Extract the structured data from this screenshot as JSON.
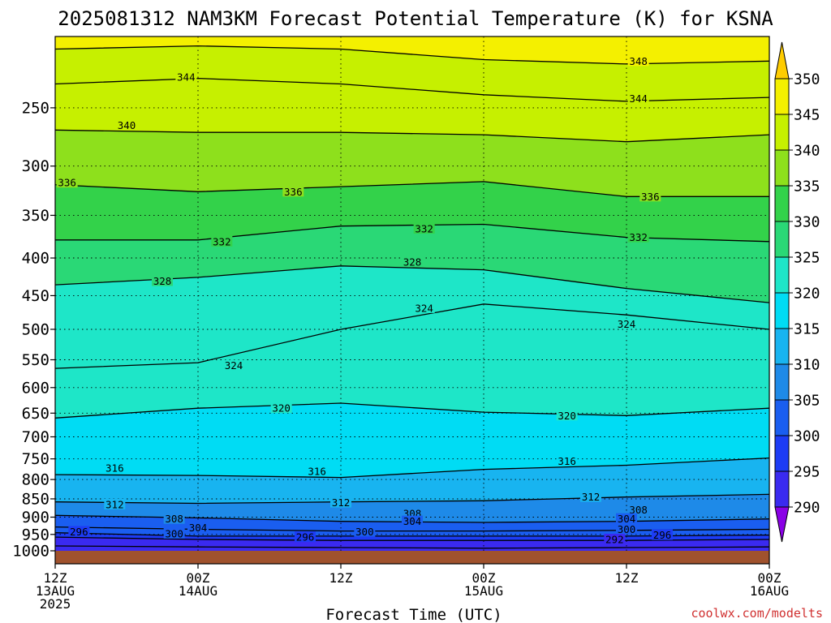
{
  "chart_data": {
    "type": "heatmap",
    "title": "2025081312 NAM3KM Forecast Potential Temperature (K) for KSNA",
    "xlabel": "Forecast Time (UTC)",
    "ylabel": "",
    "credit": "coolwx.com/modelts",
    "y_scale": "log-pressure",
    "ylim": [
      1000,
      200
    ],
    "xlim_hours": [
      0,
      60
    ],
    "grid": true,
    "pressure_ticks": [
      250,
      300,
      350,
      400,
      450,
      500,
      550,
      600,
      650,
      700,
      750,
      800,
      850,
      900,
      950,
      1000
    ],
    "x_ticks": [
      {
        "hour": 0,
        "line1": "12Z",
        "line2": "13AUG",
        "line3": "2025"
      },
      {
        "hour": 12,
        "line1": "00Z",
        "line2": "14AUG",
        "line3": ""
      },
      {
        "hour": 24,
        "line1": "12Z",
        "line2": "",
        "line3": ""
      },
      {
        "hour": 36,
        "line1": "00Z",
        "line2": "15AUG",
        "line3": ""
      },
      {
        "hour": 48,
        "line1": "12Z",
        "line2": "",
        "line3": ""
      },
      {
        "hour": 60,
        "line1": "00Z",
        "line2": "16AUG",
        "line3": ""
      }
    ],
    "colorbar": {
      "levels": [
        290,
        295,
        300,
        305,
        310,
        315,
        320,
        325,
        330,
        335,
        340,
        345,
        350
      ],
      "colors": [
        "#8a00e6",
        "#3a2af0",
        "#1d3cf5",
        "#1a5ef0",
        "#1e8ae8",
        "#18b4f0",
        "#00dcf4",
        "#1ee6c8",
        "#2ad876",
        "#33d24a",
        "#8ee01c",
        "#c6f000",
        "#f4f000",
        "#ffcc00"
      ],
      "labels": [
        "290",
        "295",
        "300",
        "305",
        "310",
        "315",
        "320",
        "325",
        "330",
        "335",
        "340",
        "345",
        "350"
      ]
    },
    "surface_color": "#a0522d",
    "isentropes": [
      {
        "value": 292,
        "points": [
          [
            0,
            985
          ],
          [
            12,
            988
          ],
          [
            24,
            990
          ],
          [
            36,
            992
          ],
          [
            48,
            990
          ],
          [
            60,
            988
          ]
        ]
      },
      {
        "value": 296,
        "points": [
          [
            0,
            958
          ],
          [
            12,
            965
          ],
          [
            24,
            968
          ],
          [
            36,
            968
          ],
          [
            48,
            968
          ],
          [
            60,
            965
          ]
        ]
      },
      {
        "value": 300,
        "points": [
          [
            0,
            945
          ],
          [
            12,
            955
          ],
          [
            24,
            955
          ],
          [
            36,
            955
          ],
          [
            48,
            955
          ],
          [
            60,
            952
          ]
        ]
      },
      {
        "value": 304,
        "points": [
          [
            0,
            928
          ],
          [
            12,
            935
          ],
          [
            24,
            940
          ],
          [
            36,
            940
          ],
          [
            48,
            938
          ],
          [
            60,
            935
          ]
        ]
      },
      {
        "value": 308,
        "points": [
          [
            0,
            895
          ],
          [
            12,
            902
          ],
          [
            24,
            912
          ],
          [
            36,
            915
          ],
          [
            48,
            912
          ],
          [
            60,
            905
          ]
        ]
      },
      {
        "value": 312,
        "points": [
          [
            0,
            858
          ],
          [
            12,
            862
          ],
          [
            24,
            858
          ],
          [
            36,
            855
          ],
          [
            48,
            845
          ],
          [
            60,
            838
          ]
        ]
      },
      {
        "value": 316,
        "points": [
          [
            0,
            788
          ],
          [
            12,
            790
          ],
          [
            24,
            795
          ],
          [
            36,
            775
          ],
          [
            48,
            765
          ],
          [
            60,
            748
          ]
        ]
      },
      {
        "value": 320,
        "points": [
          [
            0,
            660
          ],
          [
            12,
            640
          ],
          [
            24,
            630
          ],
          [
            36,
            648
          ],
          [
            48,
            655
          ],
          [
            60,
            640
          ]
        ]
      },
      {
        "value": 324,
        "points": [
          [
            0,
            565
          ],
          [
            12,
            555
          ],
          [
            24,
            500
          ],
          [
            36,
            462
          ],
          [
            48,
            478
          ],
          [
            60,
            500
          ]
        ]
      },
      {
        "value": 328,
        "points": [
          [
            0,
            435
          ],
          [
            12,
            425
          ],
          [
            24,
            410
          ],
          [
            36,
            415
          ],
          [
            48,
            440
          ],
          [
            60,
            460
          ]
        ]
      },
      {
        "value": 332,
        "points": [
          [
            0,
            378
          ],
          [
            12,
            378
          ],
          [
            24,
            362
          ],
          [
            36,
            360
          ],
          [
            48,
            375
          ],
          [
            60,
            380
          ]
        ]
      },
      {
        "value": 336,
        "points": [
          [
            0,
            318
          ],
          [
            12,
            325
          ],
          [
            24,
            320
          ],
          [
            36,
            315
          ],
          [
            48,
            330
          ],
          [
            60,
            330
          ]
        ]
      },
      {
        "value": 340,
        "points": [
          [
            0,
            268
          ],
          [
            12,
            270
          ],
          [
            24,
            270
          ],
          [
            36,
            272
          ],
          [
            48,
            278
          ],
          [
            60,
            272
          ]
        ]
      },
      {
        "value": 344,
        "points": [
          [
            0,
            232
          ],
          [
            12,
            228
          ],
          [
            24,
            232
          ],
          [
            36,
            240
          ],
          [
            48,
            245
          ],
          [
            60,
            242
          ]
        ]
      },
      {
        "value": 348,
        "points": [
          [
            0,
            208
          ],
          [
            12,
            206
          ],
          [
            24,
            208
          ],
          [
            36,
            215
          ],
          [
            48,
            218
          ],
          [
            60,
            216
          ]
        ]
      }
    ],
    "contour_labels": [
      {
        "text": "344",
        "hour": 11,
        "p": 227
      },
      {
        "text": "348",
        "hour": 49,
        "p": 216
      },
      {
        "text": "340",
        "hour": 6,
        "p": 264
      },
      {
        "text": "344",
        "hour": 49,
        "p": 243
      },
      {
        "text": "336",
        "hour": 1,
        "p": 316
      },
      {
        "text": "336",
        "hour": 20,
        "p": 325
      },
      {
        "text": "336",
        "hour": 50,
        "p": 330
      },
      {
        "text": "332",
        "hour": 14,
        "p": 380
      },
      {
        "text": "332",
        "hour": 31,
        "p": 365
      },
      {
        "text": "332",
        "hour": 49,
        "p": 375
      },
      {
        "text": "328",
        "hour": 9,
        "p": 430
      },
      {
        "text": "328",
        "hour": 30,
        "p": 405
      },
      {
        "text": "324",
        "hour": 31,
        "p": 468
      },
      {
        "text": "324",
        "hour": 48,
        "p": 492
      },
      {
        "text": "324",
        "hour": 15,
        "p": 560
      },
      {
        "text": "320",
        "hour": 19,
        "p": 640
      },
      {
        "text": "320",
        "hour": 43,
        "p": 655
      },
      {
        "text": "316",
        "hour": 5,
        "p": 772
      },
      {
        "text": "316",
        "hour": 22,
        "p": 780
      },
      {
        "text": "316",
        "hour": 43,
        "p": 755
      },
      {
        "text": "312",
        "hour": 5,
        "p": 865
      },
      {
        "text": "312",
        "hour": 24,
        "p": 860
      },
      {
        "text": "312",
        "hour": 45,
        "p": 845
      },
      {
        "text": "308",
        "hour": 10,
        "p": 905
      },
      {
        "text": "308",
        "hour": 30,
        "p": 890
      },
      {
        "text": "308",
        "hour": 49,
        "p": 880
      },
      {
        "text": "304",
        "hour": 12,
        "p": 930
      },
      {
        "text": "304",
        "hour": 30,
        "p": 912
      },
      {
        "text": "304",
        "hour": 48,
        "p": 905
      },
      {
        "text": "300",
        "hour": 10,
        "p": 948
      },
      {
        "text": "300",
        "hour": 26,
        "p": 942
      },
      {
        "text": "300",
        "hour": 48,
        "p": 935
      },
      {
        "text": "296",
        "hour": 2,
        "p": 942
      },
      {
        "text": "296",
        "hour": 21,
        "p": 958
      },
      {
        "text": "296",
        "hour": 51,
        "p": 952
      },
      {
        "text": "292",
        "hour": 47,
        "p": 965
      }
    ]
  }
}
